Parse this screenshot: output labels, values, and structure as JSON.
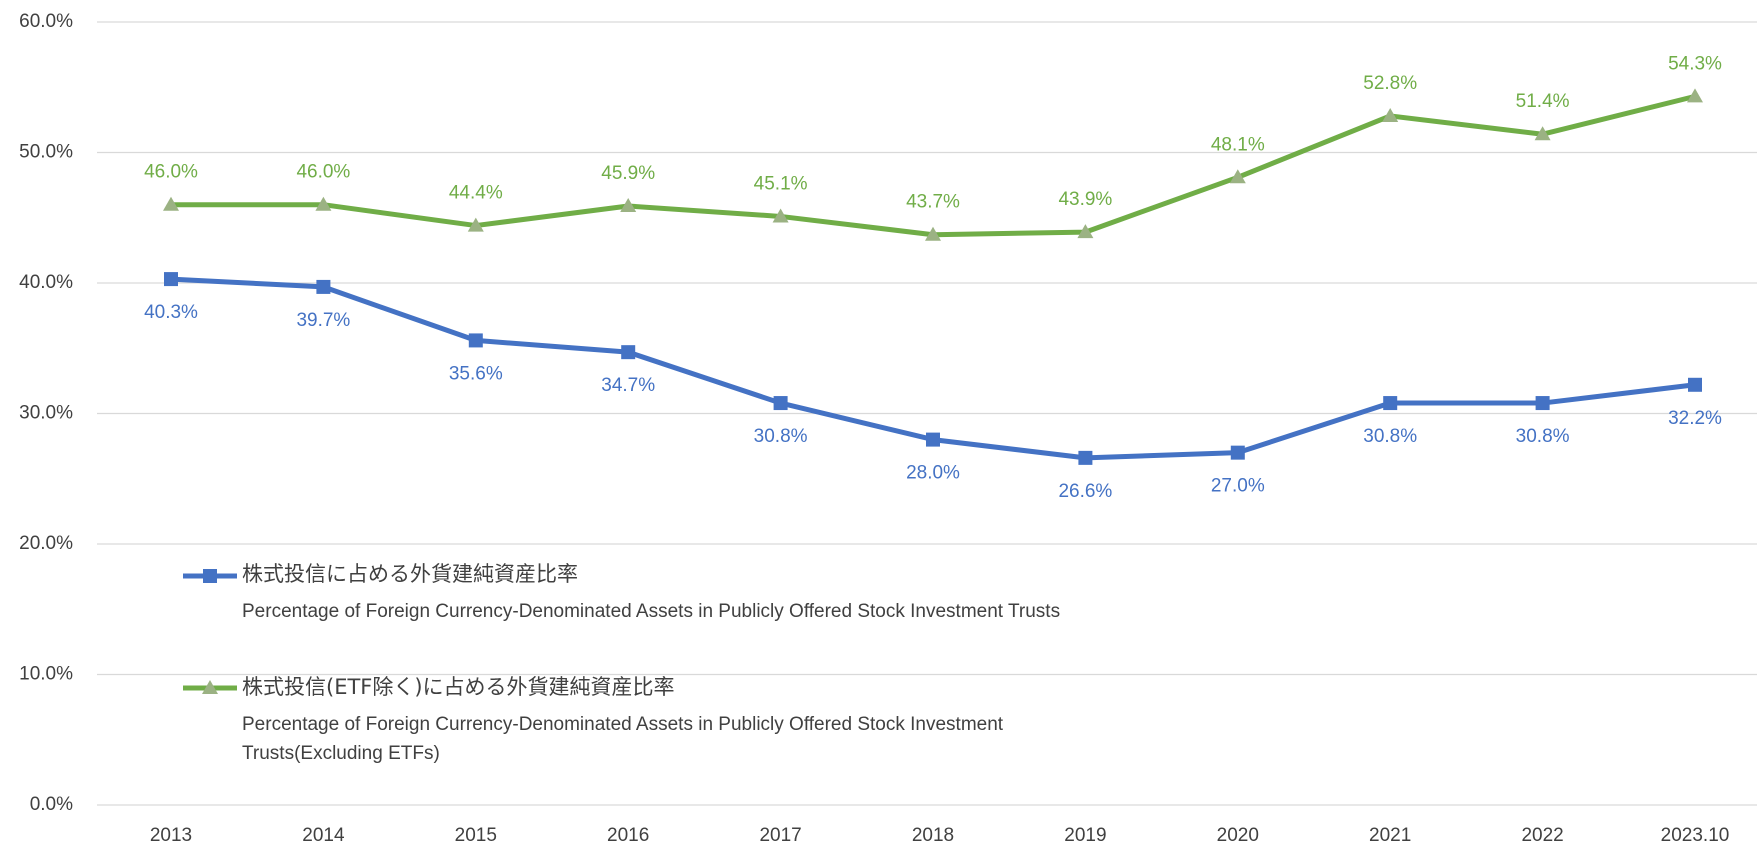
{
  "chart_data": {
    "type": "line",
    "categories": [
      "2013",
      "2014",
      "2015",
      "2016",
      "2017",
      "2018",
      "2019",
      "2020",
      "2021",
      "2022",
      "2023.10"
    ],
    "series": [
      {
        "name": "株式投信に占める外貨建純資産比率",
        "name_en": "Percentage of Foreign Currency-Denominated Assets in Publicly Offered Stock Investment Trusts",
        "color": "#4472c4",
        "marker": "square",
        "marker_color": "#4472c4",
        "values": [
          40.3,
          39.7,
          35.6,
          34.7,
          30.8,
          28.0,
          26.6,
          27.0,
          30.8,
          30.8,
          32.2
        ],
        "value_labels": [
          "40.3%",
          "39.7%",
          "35.6%",
          "34.7%",
          "30.8%",
          "28.0%",
          "26.6%",
          "27.0%",
          "30.8%",
          "30.8%",
          "32.2%"
        ]
      },
      {
        "name": "株式投信(ETF除く)に占める外貨建純資産比率",
        "name_en": "Percentage of Foreign Currency-Denominated Assets in Publicly Offered Stock Investment Trusts(Excluding ETFs)",
        "color": "#70ad47",
        "marker": "triangle",
        "marker_color": "#9bb283",
        "values": [
          46.0,
          46.0,
          44.4,
          45.9,
          45.1,
          43.7,
          43.9,
          48.1,
          52.8,
          51.4,
          54.3
        ],
        "value_labels": [
          "46.0%",
          "46.0%",
          "44.4%",
          "45.9%",
          "45.1%",
          "43.7%",
          "43.9%",
          "48.1%",
          "52.8%",
          "51.4%",
          "54.3%"
        ]
      }
    ],
    "ylim": [
      0,
      60
    ],
    "yticks": [
      {
        "value": 0,
        "label": "0.0%"
      },
      {
        "value": 10,
        "label": "10.0%"
      },
      {
        "value": 20,
        "label": "20.0%"
      },
      {
        "value": 30,
        "label": "30.0%"
      },
      {
        "value": 40,
        "label": "40.0%"
      },
      {
        "value": 50,
        "label": "50.0%"
      },
      {
        "value": 60,
        "label": "60.0%"
      }
    ],
    "grid": true
  }
}
